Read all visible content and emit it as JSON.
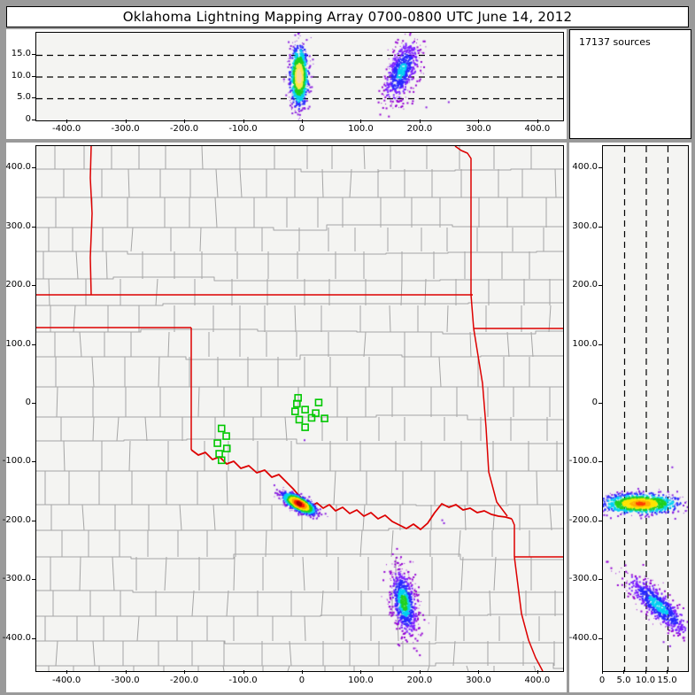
{
  "title": "Oklahoma Lightning Mapping Array   0700-0800 UTC  June 14, 2012",
  "sources_label": "17137 sources",
  "colors": {
    "frame": "#9a9a9a",
    "panel_bg": "#ffffff",
    "plot_bg": "#f4f4f2",
    "county_line": "#a5a5a5",
    "state_line": "#dd0000",
    "station": "#00c800",
    "dash_line": "#000000"
  },
  "chart_data": {
    "type": "scatter",
    "title": "Oklahoma Lightning Mapping Array",
    "time_range": "0700-0800 UTC June 14, 2012",
    "total_sources": 17137,
    "panels": {
      "top": {
        "id": "altitude-vs-east-west",
        "xlim": [
          -452.8,
          442.3
        ],
        "ylim": [
          0,
          20.2
        ],
        "xticks": {
          "values": [
            -400,
            -300,
            -200,
            -100,
            0,
            100,
            200,
            300,
            400
          ],
          "labels": [
            "-400.0",
            "-300.0",
            "-200.0",
            "-100.0",
            "0",
            "100.0",
            "200.0",
            "300.0",
            "400.0"
          ]
        },
        "yticks": {
          "values": [
            15,
            10,
            5,
            0
          ],
          "labels": [
            "15.0",
            "10.0",
            "5.0",
            "0"
          ]
        },
        "dashed_y": [
          5,
          10,
          15
        ]
      },
      "main": {
        "id": "plan-view",
        "xlim": [
          -452.8,
          442.3
        ],
        "ylim": [
          -454.3,
          437.8
        ],
        "xticks": {
          "values": [
            -400,
            -300,
            -200,
            -100,
            0,
            100,
            200,
            300,
            400
          ],
          "labels": [
            "-400.0",
            "-300.0",
            "-200.0",
            "-100.0",
            "0",
            "100.0",
            "200.0",
            "300.0",
            "400.0"
          ]
        },
        "yticks": {
          "values": [
            400,
            300,
            200,
            100,
            0,
            -100,
            -200,
            -300,
            -400
          ],
          "labels": [
            "400.0",
            "300.0",
            "200.0",
            "100.0",
            "0",
            "-100.0",
            "-200.0",
            "-300.0",
            "-400.0"
          ]
        }
      },
      "right": {
        "id": "north-south-vs-altitude",
        "xlim": [
          0,
          19.6
        ],
        "ylim": [
          -454.3,
          437.8
        ],
        "xticks": {
          "values": [
            0,
            5,
            10,
            15
          ],
          "labels": [
            "0",
            "5.0",
            "10.0",
            "15.0"
          ]
        },
        "yticks": {
          "values": [
            400,
            300,
            200,
            100,
            0,
            -100,
            -200,
            -300,
            -400
          ],
          "labels": [
            "400.0",
            "300.0",
            "200.0",
            "100.0",
            "0",
            "-100.0",
            "-200.0",
            "-300.0",
            "-400.0"
          ]
        },
        "dashed_x": [
          5,
          10,
          15
        ]
      }
    },
    "stations_km": [
      [
        -8,
        10
      ],
      [
        -10,
        0
      ],
      [
        -13,
        -13
      ],
      [
        4,
        -10
      ],
      [
        -6,
        -27
      ],
      [
        15,
        -24
      ],
      [
        27,
        2
      ],
      [
        22,
        -16
      ],
      [
        37,
        -25
      ],
      [
        4,
        -40
      ],
      [
        -138,
        -42
      ],
      [
        -130,
        -55
      ],
      [
        -145,
        -67
      ],
      [
        -129,
        -76
      ],
      [
        -142,
        -85
      ],
      [
        -138,
        -96
      ]
    ],
    "clusters": [
      {
        "name": "central-ok-storm-plan",
        "panel": "main",
        "count": 1150,
        "center": [
          -6,
          -170
        ],
        "sigma": [
          15,
          5.5
        ],
        "angle_deg": -28,
        "seed": 11,
        "palette": [
          "#aa0000",
          "#ff2000",
          "#ff9800",
          "#ffe400",
          "#20d020",
          "#00d0f0",
          "#2828ff",
          "#8a20e0"
        ],
        "thresholds": [
          0.3,
          0.55,
          0.85,
          1.2,
          1.55,
          1.95,
          2.35
        ]
      },
      {
        "name": "central-ok-storm-ew-alt",
        "panel": "top",
        "count": 1050,
        "center": [
          -6,
          10.2
        ],
        "sigma": [
          7.5,
          3.4
        ],
        "angle_deg": 0,
        "seed": 22,
        "palette": [
          "#ffd9a0",
          "#ffe84d",
          "#20d020",
          "#00d0f0",
          "#2828ff",
          "#8a20e0"
        ],
        "thresholds": [
          0.45,
          0.85,
          1.3,
          1.8,
          2.25
        ]
      },
      {
        "name": "central-ok-storm-ns-alt",
        "panel": "right",
        "count": 1050,
        "center": [
          8.6,
          -170
        ],
        "sigma": [
          4.4,
          8.5
        ],
        "angle_deg": 0,
        "seed": 33,
        "palette": [
          "#ff4000",
          "#ffb000",
          "#ffe400",
          "#20d020",
          "#00d0f0",
          "#2828ff",
          "#8a20e0"
        ],
        "thresholds": [
          0.25,
          0.55,
          0.95,
          1.35,
          1.8,
          2.25
        ]
      },
      {
        "name": "ne-texas-storm-plan",
        "panel": "main",
        "count": 700,
        "center": [
          172,
          -338
        ],
        "sigma": [
          11,
          30
        ],
        "angle_deg": 10,
        "seed": 44,
        "palette": [
          "#20d020",
          "#00d0f0",
          "#2828ff",
          "#7a1fff",
          "#9400d3"
        ],
        "thresholds": [
          0.45,
          0.8,
          1.3,
          1.8
        ]
      },
      {
        "name": "ne-texas-storm-ew-alt",
        "panel": "top",
        "count": 600,
        "center": [
          168,
          11.3
        ],
        "sigma": [
          16,
          3.1
        ],
        "angle_deg": 8,
        "seed": 55,
        "palette": [
          "#00d0f0",
          "#2828ff",
          "#7a1fff",
          "#9400d3"
        ],
        "thresholds": [
          0.5,
          1.1,
          1.8
        ]
      },
      {
        "name": "ne-texas-storm-ns-alt",
        "panel": "right",
        "count": 650,
        "center": [
          12.8,
          -343
        ],
        "sigma": [
          2.0,
          26
        ],
        "angle_deg": 7,
        "seed": 66,
        "palette": [
          "#00d0f0",
          "#2828ff",
          "#7a1fff",
          "#9400d3"
        ],
        "thresholds": [
          0.6,
          1.2,
          1.9
        ]
      }
    ],
    "stray_points": [
      {
        "panel": "main",
        "color": "#8a20e0",
        "points": [
          [
            3,
            -62
          ],
          [
            237,
            -198
          ],
          [
            240,
            -203
          ]
        ]
      },
      {
        "panel": "top",
        "color": "#8a20e0",
        "points": [
          [
            248,
            4.2
          ],
          [
            210,
            3.0
          ]
        ]
      },
      {
        "panel": "right",
        "color": "#8a20e0",
        "points": [
          [
            16,
            -108
          ],
          [
            14,
            -405
          ],
          [
            15.5,
            -412
          ]
        ]
      }
    ]
  }
}
